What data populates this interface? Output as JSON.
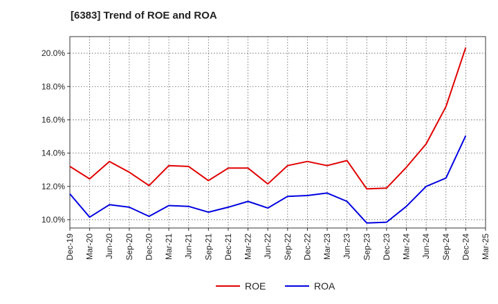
{
  "chart_data": {
    "type": "line",
    "title": "[6383]  Trend of ROE and ROA",
    "xlabel": "",
    "ylabel": "",
    "categories": [
      "Dec-19",
      "Mar-20",
      "Jun-20",
      "Sep-20",
      "Dec-20",
      "Mar-21",
      "Jun-21",
      "Sep-21",
      "Dec-21",
      "Mar-22",
      "Jun-22",
      "Sep-22",
      "Dec-22",
      "Mar-23",
      "Jun-23",
      "Sep-23",
      "Dec-23",
      "Mar-24",
      "Jun-24",
      "Sep-24",
      "Dec-24",
      "Mar-25"
    ],
    "ylim": [
      9.5,
      21.0
    ],
    "yticks": [
      10,
      12,
      14,
      16,
      18,
      20
    ],
    "ytick_labels": [
      "10.0%",
      "12.0%",
      "14.0%",
      "16.0%",
      "18.0%",
      "20.0%"
    ],
    "grid": true,
    "legend_position": "bottom-center",
    "series": [
      {
        "name": "ROE",
        "color": "#e00000",
        "values": [
          13.2,
          12.45,
          13.5,
          12.85,
          12.05,
          13.25,
          13.2,
          12.35,
          13.1,
          13.1,
          12.15,
          13.25,
          13.5,
          13.25,
          13.55,
          11.85,
          11.9,
          13.15,
          14.55,
          16.8,
          20.35,
          null
        ]
      },
      {
        "name": "ROA",
        "color": "#0000e0",
        "values": [
          11.55,
          10.15,
          10.9,
          10.75,
          10.2,
          10.85,
          10.8,
          10.45,
          10.75,
          11.1,
          10.7,
          11.4,
          11.45,
          11.6,
          11.1,
          9.8,
          9.85,
          10.8,
          12.0,
          12.5,
          15.05,
          null
        ]
      }
    ]
  }
}
